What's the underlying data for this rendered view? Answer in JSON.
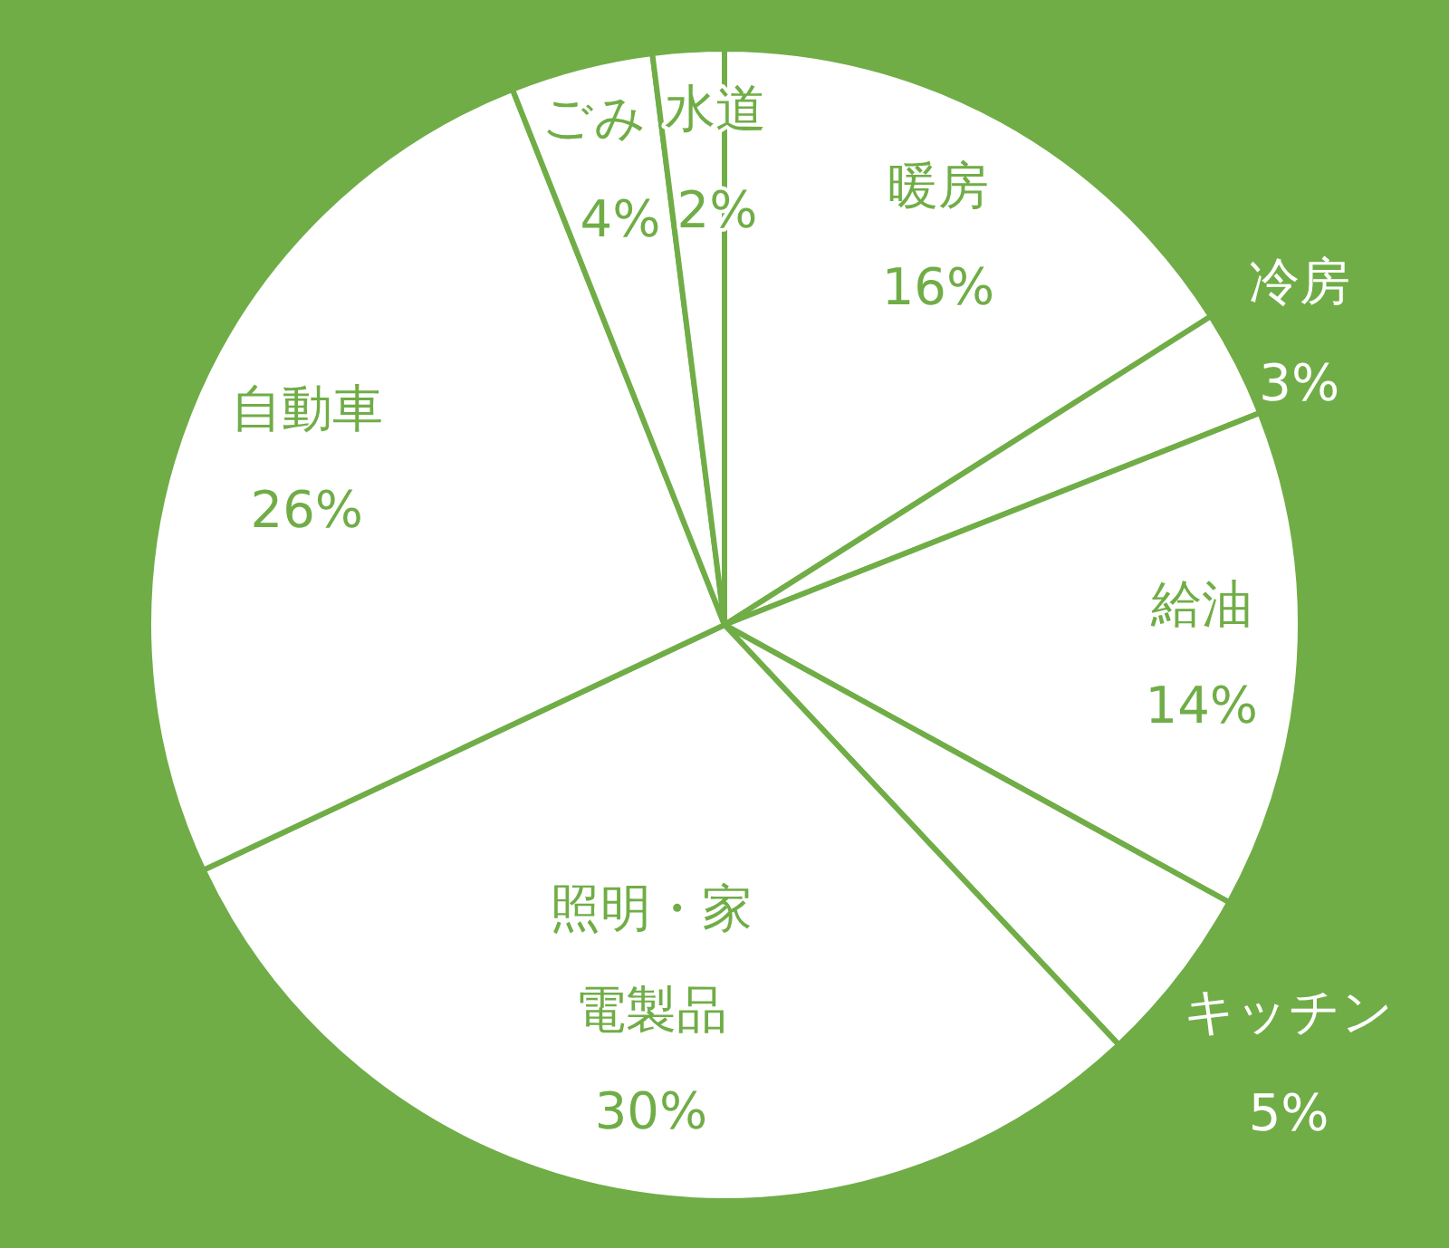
{
  "chart_data": {
    "type": "pie",
    "categories": [
      "暖房",
      "冷房",
      "給油",
      "キッチン",
      "照明・家電製品",
      "自動車",
      "ごみ",
      "水道"
    ],
    "values": [
      16,
      3,
      14,
      5,
      30,
      26,
      4,
      2
    ],
    "value_labels": [
      "16%",
      "3%",
      "14%",
      "5%",
      "30%",
      "26%",
      "4%",
      "2%"
    ],
    "colors": [
      "#ffffff",
      "#ffffff",
      "#ffffff",
      "#ffffff",
      "#ffffff",
      "#ffffff",
      "#ffffff",
      "#ffffff"
    ],
    "legend": false
  }
}
